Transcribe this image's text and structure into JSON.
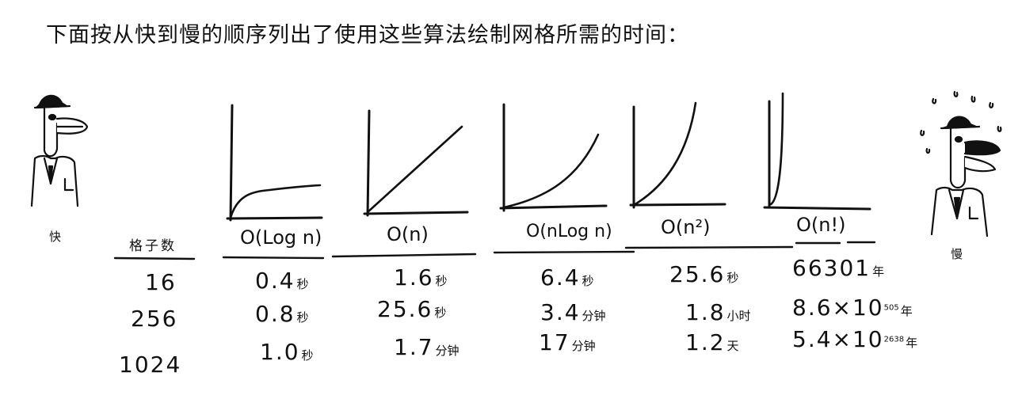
{
  "caption": "下面按从快到慢的顺序列出了使用这些算法绘制网格所需的时间：",
  "fast_label": "快",
  "slow_label": "慢",
  "table": {
    "row_header": "格子数",
    "columns": [
      "O(Log n)",
      "O(n)",
      "O(nLog n)",
      "O(n²)",
      "O(n!)"
    ],
    "rows": [
      {
        "cells": 16,
        "times": [
          {
            "value": "0.4",
            "unit": "秒"
          },
          {
            "value": "1.6",
            "unit": "秒"
          },
          {
            "value": "6.4",
            "unit": "秒"
          },
          {
            "value": "25.6",
            "unit": "秒"
          },
          {
            "value": "66301",
            "unit": "年",
            "exp": ""
          }
        ]
      },
      {
        "cells": 256,
        "times": [
          {
            "value": "0.8",
            "unit": "秒"
          },
          {
            "value": "25.6",
            "unit": "秒"
          },
          {
            "value": "3.4",
            "unit": "分钟"
          },
          {
            "value": "1.8",
            "unit": "小时"
          },
          {
            "value": "8.6×10",
            "unit": "年",
            "exp": "505"
          }
        ]
      },
      {
        "cells": 1024,
        "times": [
          {
            "value": "1.0",
            "unit": "秒"
          },
          {
            "value": "1.7",
            "unit": "分钟"
          },
          {
            "value": "17",
            "unit": "分钟"
          },
          {
            "value": "1.2",
            "unit": "天"
          },
          {
            "value": "5.4×10",
            "unit": "年",
            "exp": "2638"
          }
        ]
      }
    ]
  }
}
